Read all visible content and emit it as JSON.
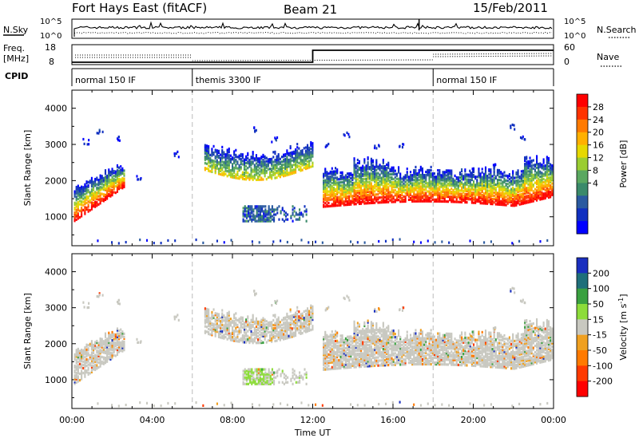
{
  "header": {
    "station": "Fort Hays East (fitACF)",
    "beam": "Beam 21",
    "date": "15/Feb/2011"
  },
  "summary": {
    "nsky_label": "N.Sky",
    "nsearch_label": "N.Search",
    "noise_ticks": [
      "10^5",
      "10^0"
    ],
    "freq_label_1": "Freq.",
    "freq_label_2": "[MHz]",
    "freq_ticks": [
      "18",
      "8"
    ],
    "nave_label": "Nave",
    "nave_ticks": [
      "60",
      "0"
    ],
    "cpid_label": "CPID",
    "cpid_segments": [
      {
        "label": "normal 150 IF",
        "start": 0,
        "end": 6
      },
      {
        "label": "themis 3300 IF",
        "start": 6,
        "end": 18
      },
      {
        "label": "normal 150 IF",
        "start": 18,
        "end": 24
      }
    ]
  },
  "axes": {
    "xlabel": "Time UT",
    "xlim": [
      0,
      24
    ],
    "x_tick_values": [
      0,
      4,
      8,
      12,
      16,
      20,
      24
    ],
    "x_tick_labels": [
      "00:00",
      "04:00",
      "08:00",
      "12:00",
      "16:00",
      "20:00",
      "00:00"
    ],
    "ylabel": "Slant Range [km]",
    "ylim": [
      200,
      4500
    ],
    "y_tick_values": [
      1000,
      2000,
      3000,
      4000
    ],
    "y_tick_labels": [
      "1000",
      "2000",
      "3000",
      "4000"
    ]
  },
  "chart_data": [
    {
      "type": "heatmap",
      "panel": "power",
      "xlabel": "Time UT",
      "ylabel": "Slant Range [km]",
      "colorbar_label": "Power [dB]",
      "colorbar_ticks": [
        "28",
        "24",
        "20",
        "16",
        "12",
        "8",
        "4"
      ],
      "colorbar_colors": [
        "#ff0000",
        "#ff3300",
        "#ff7a00",
        "#ffb000",
        "#e6d800",
        "#9acd32",
        "#5aa860",
        "#3a8a6a",
        "#2a5aa0",
        "#1030c0",
        "#0000ff"
      ],
      "scatter_regions": [
        {
          "t": [
            0.3,
            2.6
          ],
          "r": [
            800,
            2300
          ],
          "note": "echo band"
        },
        {
          "t": [
            6.6,
            12.0
          ],
          "r": [
            2100,
            3300
          ],
          "note": "arc"
        },
        {
          "t": [
            8.5,
            11.7
          ],
          "r": [
            900,
            1350
          ],
          "note": "patch"
        },
        {
          "t": [
            12.5,
            24.0
          ],
          "r": [
            1300,
            2600
          ],
          "note": "band"
        }
      ]
    },
    {
      "type": "heatmap",
      "panel": "velocity",
      "xlabel": "Time UT",
      "ylabel": "Slant Range [km]",
      "colorbar_label_main": "Velocity [m s",
      "colorbar_label_exp": "-1",
      "colorbar_label_tail": "]",
      "colorbar_ticks": [
        "200",
        "100",
        "50",
        "15",
        "-15",
        "-50",
        "-100",
        "-200"
      ],
      "colorbar_colors": [
        "#1a2fbf",
        "#1f6f7a",
        "#3aa040",
        "#8ddc3a",
        "#c8c8c0",
        "#f0a020",
        "#ff7a00",
        "#ff3a00",
        "#ff0000"
      ]
    }
  ]
}
